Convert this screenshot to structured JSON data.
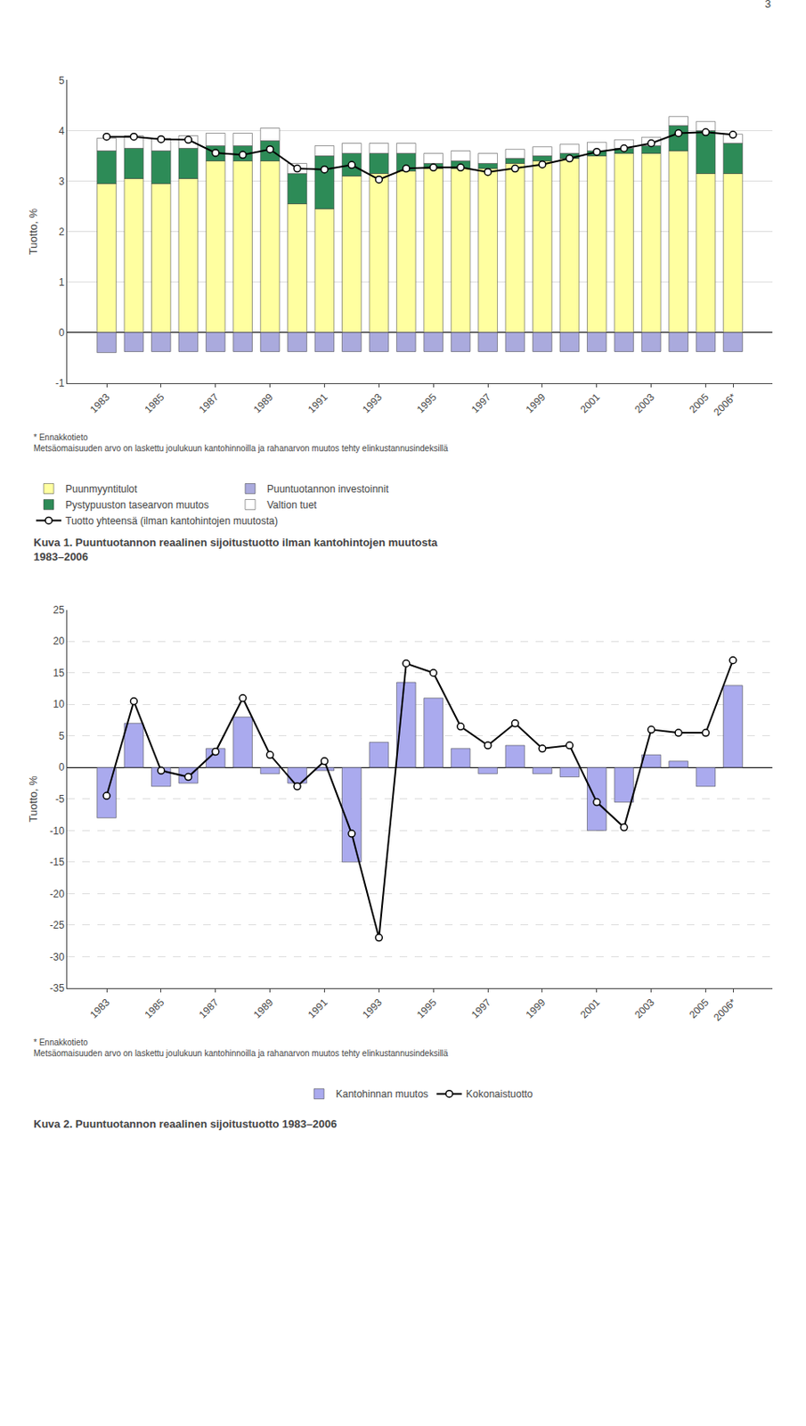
{
  "page_number": "3",
  "chart_data": [
    {
      "type": "bar",
      "stacked": true,
      "title": "Kuva 1. Puuntuotannon reaalinen sijoitustuotto ilman kantohintojen muutosta\n1983–2006",
      "annotations": [
        "* Ennakkotieto\nMetsäomaisuuden arvo on laskettu joulukuun kantohinnoilla ja rahanarvon muutos tehty elinkustannusindeksillä"
      ],
      "categories": [
        "1983",
        null,
        "1985",
        null,
        "1987",
        null,
        "1989",
        null,
        "1991",
        null,
        "1993",
        null,
        "1995",
        null,
        "1997",
        null,
        "1999",
        null,
        "2001",
        null,
        "2003",
        null,
        "2005",
        "2006*"
      ],
      "ylabel": "Tuotto, %",
      "ylim": [
        -1,
        5
      ],
      "yticks": [
        -1,
        0,
        1,
        2,
        3,
        4,
        5
      ],
      "grid": true,
      "legend": "bottom",
      "reference_lines": [
        {
          "y": 4.0,
          "color": "#AAAAAA",
          "line_style": "dashed"
        }
      ],
      "series": [
        {
          "name": "Puunmyyntitulot",
          "type": "bar",
          "color": "#FFFFA0",
          "values": [
            2.95,
            3.05,
            2.95,
            3.05,
            3.4,
            3.4,
            3.4,
            2.55,
            2.45,
            3.1,
            3.15,
            3.2,
            3.25,
            3.25,
            3.25,
            3.35,
            3.4,
            3.45,
            3.5,
            3.55,
            3.55,
            3.6,
            3.15,
            3.15
          ]
        },
        {
          "name": "Puuntuotannon investoinnit",
          "type": "bar",
          "color": "#AAAADD",
          "values": [
            -0.4,
            -0.38,
            -0.38,
            -0.38,
            -0.38,
            -0.38,
            -0.38,
            -0.38,
            -0.38,
            -0.38,
            -0.38,
            -0.38,
            -0.38,
            -0.38,
            -0.38,
            -0.38,
            -0.38,
            -0.38,
            -0.38,
            -0.38,
            -0.38,
            -0.38,
            -0.38,
            -0.38
          ]
        },
        {
          "name": "Pystypuuston tasearvon muutos",
          "type": "bar",
          "color": "#2D8B57",
          "values": [
            0.65,
            0.6,
            0.65,
            0.6,
            0.3,
            0.3,
            0.4,
            0.6,
            1.05,
            0.45,
            0.4,
            0.35,
            0.1,
            0.15,
            0.1,
            0.1,
            0.1,
            0.1,
            0.1,
            0.1,
            0.15,
            0.5,
            0.85,
            0.6
          ]
        },
        {
          "name": "Valtion tuet",
          "type": "bar",
          "color": "#FFFFFF",
          "values": [
            0.25,
            0.25,
            0.25,
            0.25,
            0.25,
            0.25,
            0.25,
            0.2,
            0.2,
            0.2,
            0.2,
            0.2,
            0.2,
            0.2,
            0.2,
            0.18,
            0.18,
            0.18,
            0.17,
            0.17,
            0.17,
            0.18,
            0.18,
            0.18
          ]
        },
        {
          "name": "Tuotto yhteensä (ilman kantohintojen muutosta)",
          "type": "line",
          "color": "#000000",
          "marker": "circle",
          "values": [
            3.88,
            3.88,
            3.83,
            3.82,
            3.56,
            3.52,
            3.63,
            3.25,
            3.23,
            3.32,
            3.03,
            3.25,
            3.27,
            3.27,
            3.18,
            3.25,
            3.33,
            3.45,
            3.58,
            3.65,
            3.75,
            3.95,
            3.97,
            3.92
          ]
        }
      ]
    },
    {
      "type": "bar",
      "title": "Kuva 2. Puuntuotannon reaalinen sijoitustuotto 1983–2006",
      "annotations": [
        "* Ennakkotieto\nMetsäomaisuuden arvo on laskettu joulukuun kantohinnoilla ja rahanarvon muutos tehty elinkustannusindeksillä"
      ],
      "categories": [
        "1983",
        null,
        "1985",
        null,
        "1987",
        null,
        "1989",
        null,
        "1991",
        null,
        "1993",
        null,
        "1995",
        null,
        "1997",
        null,
        "1999",
        null,
        "2001",
        null,
        "2003",
        null,
        "2005",
        "2006*"
      ],
      "ylabel": "Tuotto, %",
      "ylim": [
        -35,
        25
      ],
      "yticks": [
        -35,
        -30,
        -25,
        -20,
        -15,
        -10,
        -5,
        0,
        5,
        10,
        15,
        20,
        25
      ],
      "grid": true,
      "legend": "bottom",
      "series": [
        {
          "name": "Kantohinnan muutos",
          "type": "bar",
          "color": "#AAAAEE",
          "values": [
            -8.0,
            7.0,
            -3.0,
            -2.5,
            3.0,
            8.0,
            -1.0,
            -2.5,
            -0.5,
            -15.0,
            4.0,
            13.5,
            11.0,
            3.0,
            -1.0,
            3.5,
            -1.0,
            -1.5,
            -10.0,
            -5.5,
            2.0,
            1.0,
            -3.0,
            13.0
          ]
        },
        {
          "name": "Kokonaistuotto",
          "type": "line",
          "color": "#000000",
          "marker": "circle",
          "values": [
            -4.5,
            10.5,
            -0.5,
            -1.5,
            2.5,
            11.0,
            2.0,
            -3.0,
            1.0,
            -10.5,
            -27.0,
            16.5,
            15.0,
            6.5,
            3.5,
            7.0,
            3.0,
            3.5,
            -5.5,
            -9.5,
            6.0,
            5.5,
            5.5,
            17.0
          ]
        }
      ]
    }
  ]
}
